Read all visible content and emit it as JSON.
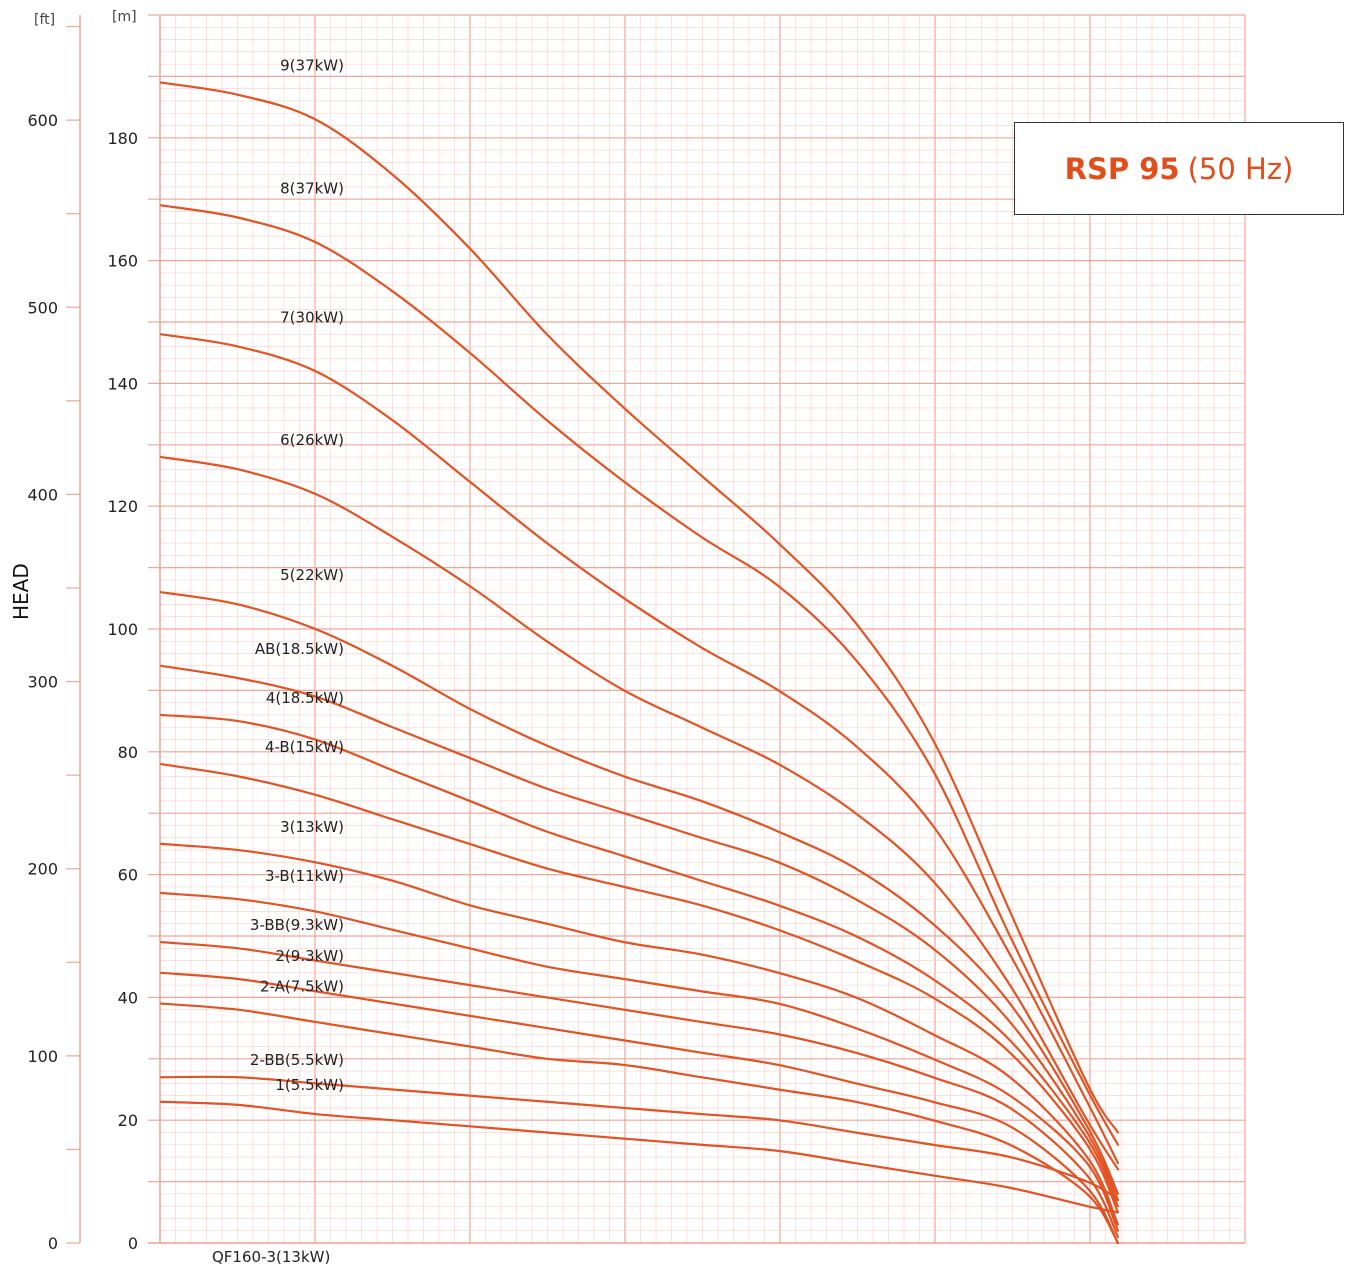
{
  "chart_data": {
    "type": "line",
    "title": "RSP 95",
    "title_suffix": "(50 Hz)",
    "ylabel": "HEAD",
    "y_unit_left": "[ft]",
    "y_unit_right": "[m]",
    "ylim_m": [
      0,
      200
    ],
    "ylim_ft": [
      0,
      656.2
    ],
    "y_ticks_m": [
      0,
      20,
      40,
      60,
      80,
      100,
      120,
      140,
      160,
      180
    ],
    "y_ticks_ft": [
      0,
      100,
      200,
      300,
      400,
      500,
      600
    ],
    "xlim": [
      0,
      7
    ],
    "grid": true,
    "legend_placement": "labels at left end of curves",
    "colors": {
      "curve": "#e25222",
      "grid_minor": "#f9cfc6",
      "grid_major": "#f2a596",
      "title": "#e24e1b",
      "axis": "#f2a596"
    },
    "bottom_label": "QF160-3(13kW)",
    "series": [
      {
        "name": "9(37kW)",
        "x": [
          0,
          0.5,
          1,
          1.5,
          2,
          2.5,
          3,
          3.5,
          4,
          4.5,
          5,
          5.5,
          6,
          6.2
        ],
        "y": [
          189,
          187,
          183,
          174,
          162,
          148,
          136,
          125,
          114,
          101,
          82,
          54,
          26,
          18
        ]
      },
      {
        "name": "8(37kW)",
        "x": [
          0,
          0.5,
          1,
          1.5,
          2,
          2.5,
          3,
          3.5,
          4,
          4.5,
          5,
          5.5,
          6,
          6.2
        ],
        "y": [
          169,
          167,
          163,
          155,
          145,
          134,
          124,
          115,
          107,
          95,
          77,
          50,
          25,
          16
        ]
      },
      {
        "name": "7(30kW)",
        "x": [
          0,
          0.5,
          1,
          1.5,
          2,
          2.5,
          3,
          3.5,
          4,
          4.5,
          5,
          5.5,
          6,
          6.2
        ],
        "y": [
          148,
          146,
          142,
          134,
          124,
          114,
          105,
          97,
          90,
          81,
          68,
          47,
          23,
          13
        ]
      },
      {
        "name": "6(26kW)",
        "x": [
          0,
          0.5,
          1,
          1.5,
          2,
          2.5,
          3,
          3.5,
          4,
          4.5,
          5,
          5.5,
          6,
          6.2
        ],
        "y": [
          128,
          126,
          122,
          115,
          107,
          98,
          90,
          84,
          78,
          70,
          59,
          42,
          20,
          12
        ]
      },
      {
        "name": "5(22kW)",
        "x": [
          0,
          0.5,
          1,
          1.5,
          2,
          2.5,
          3,
          3.5,
          4,
          4.5,
          5,
          5.5,
          6,
          6.2
        ],
        "y": [
          106,
          104,
          100,
          94,
          87,
          81,
          76,
          72,
          67,
          61,
          52,
          39,
          19,
          8
        ]
      },
      {
        "name": "AB(18.5kW)",
        "x": [
          0,
          0.5,
          1,
          1.5,
          2,
          2.5,
          3,
          3.5,
          4,
          4.5,
          5,
          5.5,
          6,
          6.2
        ],
        "y": [
          94,
          92,
          89,
          84,
          79,
          74,
          70,
          66,
          62,
          56,
          48,
          36,
          18,
          7
        ]
      },
      {
        "name": "4(18.5kW)",
        "x": [
          0,
          0.5,
          1,
          1.5,
          2,
          2.5,
          3,
          3.5,
          4,
          4.5,
          5,
          5.5,
          6,
          6.2
        ],
        "y": [
          86,
          85,
          82,
          77,
          72,
          67,
          63,
          59,
          55,
          50,
          43,
          33,
          17,
          6
        ]
      },
      {
        "name": "4-B(15kW)",
        "x": [
          0,
          0.5,
          1,
          1.5,
          2,
          2.5,
          3,
          3.5,
          4,
          4.5,
          5,
          5.5,
          6,
          6.2
        ],
        "y": [
          78,
          76,
          73,
          69,
          65,
          61,
          58,
          55,
          51,
          46,
          40,
          31,
          16,
          5
        ]
      },
      {
        "name": "3(13kW)",
        "x": [
          0,
          0.5,
          1,
          1.5,
          2,
          2.5,
          3,
          3.5,
          4,
          4.5,
          5,
          5.5,
          6,
          6.2
        ],
        "y": [
          65,
          64,
          62,
          59,
          55,
          52,
          49,
          47,
          44,
          40,
          34,
          27,
          14,
          3
        ]
      },
      {
        "name": "3-B(11kW)",
        "x": [
          0,
          0.5,
          1,
          1.5,
          2,
          2.5,
          3,
          3.5,
          4,
          4.5,
          5,
          5.5,
          6,
          6.2
        ],
        "y": [
          57,
          56,
          54,
          51,
          48,
          45,
          43,
          41,
          39,
          35,
          30,
          24,
          13,
          2
        ]
      },
      {
        "name": "3-BB(9.3kW)",
        "x": [
          0,
          0.5,
          1,
          1.5,
          2,
          2.5,
          3,
          3.5,
          4,
          4.5,
          5,
          5.5,
          6,
          6.2
        ],
        "y": [
          49,
          48,
          46,
          44,
          42,
          40,
          38,
          36,
          34,
          31,
          27,
          22,
          11,
          1
        ]
      },
      {
        "name": "2(9.3kW)",
        "x": [
          0,
          0.5,
          1,
          1.5,
          2,
          2.5,
          3,
          3.5,
          4,
          4.5,
          5,
          5.5,
          6,
          6.2
        ],
        "y": [
          44,
          43,
          41,
          39,
          37,
          35,
          33,
          31,
          29,
          26,
          23,
          19,
          9,
          0
        ]
      },
      {
        "name": "2-A(7.5kW)",
        "x": [
          0,
          0.5,
          1,
          1.5,
          2,
          2.5,
          3,
          3.5,
          4,
          4.5,
          5,
          5.5,
          6,
          6.2
        ],
        "y": [
          39,
          38,
          36,
          34,
          32,
          30,
          29,
          27,
          25,
          23,
          20,
          16,
          8,
          0
        ]
      },
      {
        "name": "2-BB(5.5kW)",
        "x": [
          0,
          0.5,
          1,
          1.5,
          2,
          2.5,
          3,
          3.5,
          4,
          4.5,
          5,
          5.5,
          6,
          6.2
        ],
        "y": [
          27,
          27,
          26,
          25,
          24,
          23,
          22,
          21,
          20,
          18,
          16,
          14,
          10,
          7
        ]
      },
      {
        "name": "1(5.5kW)",
        "x": [
          0,
          0.5,
          1,
          1.5,
          2,
          2.5,
          3,
          3.5,
          4,
          4.5,
          5,
          5.5,
          6,
          6.2
        ],
        "y": [
          23,
          22.5,
          21,
          20,
          19,
          18,
          17,
          16,
          15,
          13,
          11,
          9,
          6,
          5
        ]
      }
    ]
  }
}
